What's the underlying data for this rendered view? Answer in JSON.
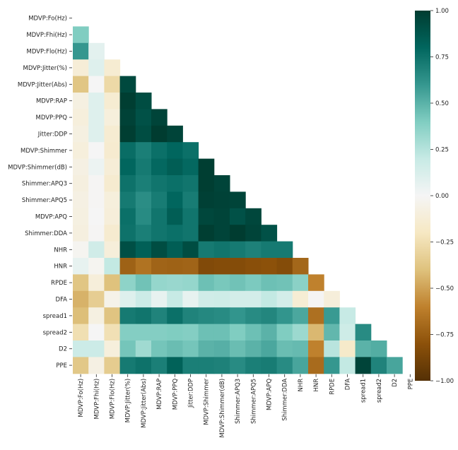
{
  "chart_data": {
    "type": "heatmap",
    "title": "",
    "xlabel": "",
    "ylabel": "",
    "mask": "upper-triangle-including-diagonal",
    "labels": [
      "MDVP:Fo(Hz)",
      "MDVP:Fhi(Hz)",
      "MDVP:Flo(Hz)",
      "MDVP:Jitter(%)",
      "MDVP:Jitter(Abs)",
      "MDVP:RAP",
      "MDVP:PPQ",
      "Jitter:DDP",
      "MDVP:Shimmer",
      "MDVP:Shimmer(dB)",
      "Shimmer:APQ3",
      "Shimmer:APQ5",
      "MDVP:APQ",
      "Shimmer:DDA",
      "NHR",
      "HNR",
      "RPDE",
      "DFA",
      "spread1",
      "spread2",
      "D2",
      "PPE"
    ],
    "matrix": [
      [],
      [
        0.4
      ],
      [
        0.6,
        0.08
      ],
      [
        -0.12,
        0.1,
        -0.14
      ],
      [
        -0.38,
        0.0,
        -0.28,
        0.94
      ],
      [
        -0.08,
        0.1,
        -0.14,
        0.99,
        0.92
      ],
      [
        -0.1,
        0.1,
        -0.1,
        0.97,
        0.9,
        0.96
      ],
      [
        -0.08,
        0.1,
        -0.14,
        0.99,
        0.92,
        1.0,
        0.96
      ],
      [
        -0.1,
        0.0,
        -0.15,
        0.77,
        0.7,
        0.76,
        0.8,
        0.76
      ],
      [
        -0.07,
        0.04,
        -0.12,
        0.8,
        0.72,
        0.79,
        0.84,
        0.79,
        0.99
      ],
      [
        -0.09,
        -0.01,
        -0.15,
        0.75,
        0.7,
        0.74,
        0.76,
        0.74,
        0.99,
        0.96
      ],
      [
        -0.07,
        -0.01,
        -0.1,
        0.72,
        0.64,
        0.71,
        0.8,
        0.71,
        0.98,
        0.97,
        0.96
      ],
      [
        -0.08,
        0.0,
        -0.11,
        0.76,
        0.65,
        0.74,
        0.84,
        0.74,
        0.95,
        0.96,
        0.9,
        0.95
      ],
      [
        -0.09,
        -0.01,
        -0.15,
        0.75,
        0.7,
        0.74,
        0.76,
        0.74,
        0.99,
        0.96,
        1.0,
        0.96,
        0.9
      ],
      [
        -0.02,
        0.16,
        -0.11,
        0.91,
        0.83,
        0.92,
        0.84,
        0.92,
        0.72,
        0.74,
        0.72,
        0.69,
        0.72,
        0.72
      ],
      [
        0.06,
        -0.02,
        0.21,
        -0.73,
        -0.66,
        -0.72,
        -0.73,
        -0.72,
        -0.84,
        -0.83,
        -0.83,
        -0.81,
        -0.8,
        -0.83,
        -0.71
      ],
      [
        -0.38,
        -0.11,
        -0.4,
        0.36,
        0.44,
        0.34,
        0.33,
        0.34,
        0.45,
        0.42,
        0.44,
        0.41,
        0.45,
        0.44,
        0.37,
        -0.6
      ],
      [
        -0.45,
        -0.34,
        -0.05,
        0.1,
        0.18,
        0.06,
        0.2,
        0.06,
        0.16,
        0.17,
        0.15,
        0.15,
        0.21,
        0.15,
        -0.13,
        -0.01,
        -0.11
      ],
      [
        -0.41,
        -0.08,
        -0.39,
        0.72,
        0.74,
        0.68,
        0.76,
        0.68,
        0.66,
        0.65,
        0.61,
        0.65,
        0.67,
        0.61,
        0.54,
        -0.67,
        0.59,
        0.2
      ],
      [
        -0.25,
        -0.0,
        -0.24,
        0.39,
        0.39,
        0.39,
        0.4,
        0.39,
        0.45,
        0.45,
        0.4,
        0.45,
        0.5,
        0.4,
        0.32,
        -0.43,
        0.48,
        0.17,
        0.65
      ],
      [
        0.18,
        0.18,
        -0.1,
        0.43,
        0.31,
        0.43,
        0.46,
        0.43,
        0.5,
        0.51,
        0.46,
        0.5,
        0.54,
        0.46,
        0.47,
        -0.6,
        0.24,
        -0.17,
        0.5,
        0.52
      ],
      [
        -0.37,
        -0.07,
        -0.35,
        0.72,
        0.75,
        0.7,
        0.82,
        0.7,
        0.7,
        0.69,
        0.65,
        0.7,
        0.71,
        0.65,
        0.55,
        -0.69,
        0.6,
        0.21,
        0.96,
        0.68,
        0.55
      ]
    ],
    "colorbar": {
      "min": -1.0,
      "max": 1.0,
      "ticks": [
        "1.00",
        "0.75",
        "0.50",
        "0.25",
        "0.00",
        "−0.25",
        "−0.50",
        "−0.75",
        "−1.00"
      ]
    },
    "colormap": [
      "#543005",
      "#8c510a",
      "#bf812d",
      "#dfc27d",
      "#f6e8c3",
      "#f5f5f5",
      "#c7eae5",
      "#80cdc1",
      "#35978f",
      "#01665e",
      "#003c30"
    ],
    "grid": false,
    "legend": "colorbar-right"
  }
}
